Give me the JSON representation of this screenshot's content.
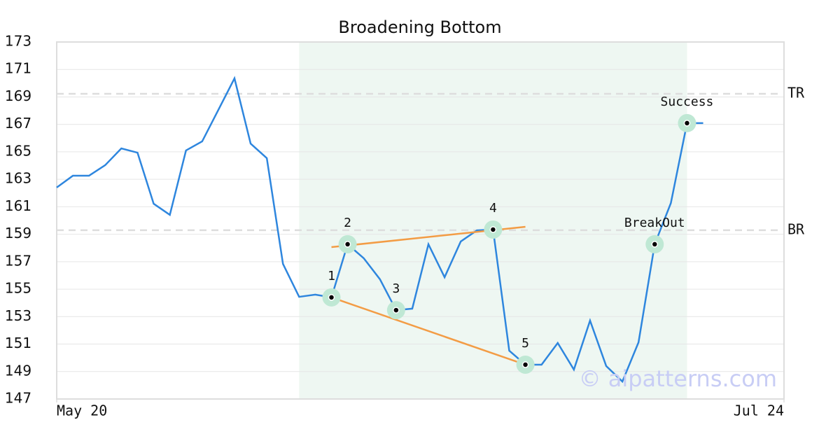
{
  "chart_data": {
    "type": "line",
    "title": "Broadening Bottom",
    "x": [
      0,
      1,
      2,
      3,
      4,
      5,
      6,
      7,
      8,
      9,
      10,
      11,
      12,
      13,
      14,
      15,
      16,
      17,
      18,
      19,
      20,
      21,
      22,
      23,
      24,
      25,
      26,
      27,
      28,
      29,
      30,
      31,
      32,
      33,
      34,
      35,
      36,
      37,
      38,
      39,
      40
    ],
    "series": [
      {
        "color": "#2e86de",
        "values": [
          162.4,
          163.26,
          163.26,
          164.03,
          165.25,
          164.94,
          161.22,
          160.41,
          165.1,
          165.76,
          168.05,
          170.35,
          165.6,
          164.54,
          156.84,
          154.44,
          154.6,
          154.4,
          158.27,
          157.25,
          155.72,
          153.47,
          153.58,
          158.27,
          155.87,
          158.47,
          159.28,
          159.34,
          150.52,
          149.5,
          149.5,
          151.08,
          149.14,
          152.71,
          149.4,
          148.27,
          151.13,
          158.27,
          161.27,
          167.09,
          167.09
        ]
      }
    ],
    "xlim": [
      0,
      45
    ],
    "xticks": [
      {
        "value": 0,
        "label": "May 20"
      },
      {
        "value": 45,
        "label": "Jul 24"
      }
    ],
    "ylim": [
      147,
      173
    ],
    "yticks": [
      147,
      149,
      151,
      153,
      155,
      157,
      159,
      161,
      163,
      165,
      167,
      169,
      171,
      173
    ],
    "grid": true,
    "shaded_region": {
      "x": [
        15,
        39
      ],
      "color": "#eef7f2"
    },
    "levels": [
      {
        "label": "TR",
        "value": 169.23
      },
      {
        "label": "BR",
        "value": 159.29
      }
    ],
    "trend_lines": [
      {
        "color": "#f39c45",
        "x": [
          17,
          29
        ],
        "y": [
          154.4,
          149.5
        ]
      },
      {
        "color": "#f39c45",
        "x": [
          17,
          29
        ],
        "y": [
          158.06,
          159.54
        ]
      }
    ],
    "annotations": [
      {
        "label": "1",
        "x": 17,
        "y": 154.4
      },
      {
        "label": "2",
        "x": 18,
        "y": 158.27
      },
      {
        "label": "3",
        "x": 21,
        "y": 153.47
      },
      {
        "label": "4",
        "x": 27,
        "y": 159.34
      },
      {
        "label": "5",
        "x": 29,
        "y": 149.5
      },
      {
        "label": "BreakOut",
        "x": 37,
        "y": 158.27
      },
      {
        "label": "Success",
        "x": 39,
        "y": 167.09
      }
    ],
    "watermark": "© aipatterns.com"
  }
}
